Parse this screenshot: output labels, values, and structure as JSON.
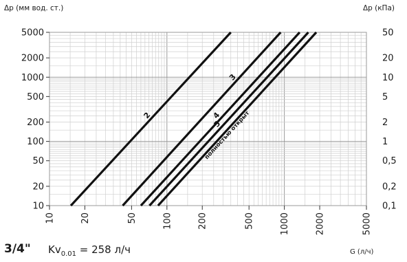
{
  "page": {
    "model": "3/4\"",
    "kv_prefix": "Kv",
    "kv_subscript": "0.01",
    "kv_suffix": " = 258 л/ч"
  },
  "chart_data": {
    "type": "line",
    "title": "",
    "xlabel": "G (л/ч)",
    "ylabel_left": "Δp (мм вод. ст.)",
    "ylabel_right": "Δp (кПа)",
    "x_scale": "log",
    "y_scale": "log",
    "xlim": [
      10,
      5000
    ],
    "ylim": [
      10,
      5000
    ],
    "grid": true,
    "x_ticks": [
      10,
      20,
      50,
      100,
      200,
      500,
      1000,
      2000,
      5000
    ],
    "x_tick_labels": [
      "10",
      "20",
      "50",
      "100",
      "200",
      "500",
      "1000",
      "2000",
      "5000"
    ],
    "y_ticks_left": [
      10,
      20,
      50,
      100,
      200,
      500,
      1000,
      2000,
      5000
    ],
    "y_tick_labels_left": [
      "10",
      "20",
      "50",
      "100",
      "200",
      "500",
      "1000",
      "2000",
      "5000"
    ],
    "y_tick_labels_right": [
      "0,1",
      "0,2",
      "0,5",
      "1",
      "2",
      "5",
      "10",
      "20",
      "50"
    ],
    "series": [
      {
        "name": "2",
        "x": [
          15.2,
          350
        ],
        "y": [
          10,
          5000
        ]
      },
      {
        "name": "3",
        "x": [
          42,
          930
        ],
        "y": [
          10,
          5000
        ]
      },
      {
        "name": "4",
        "x": [
          60,
          1350
        ],
        "y": [
          10,
          5000
        ]
      },
      {
        "name": "5",
        "x": [
          71,
          1600
        ],
        "y": [
          10,
          5000
        ]
      },
      {
        "name": "полностью открыт",
        "x": [
          84,
          1870
        ],
        "y": [
          10,
          5000
        ]
      }
    ]
  }
}
